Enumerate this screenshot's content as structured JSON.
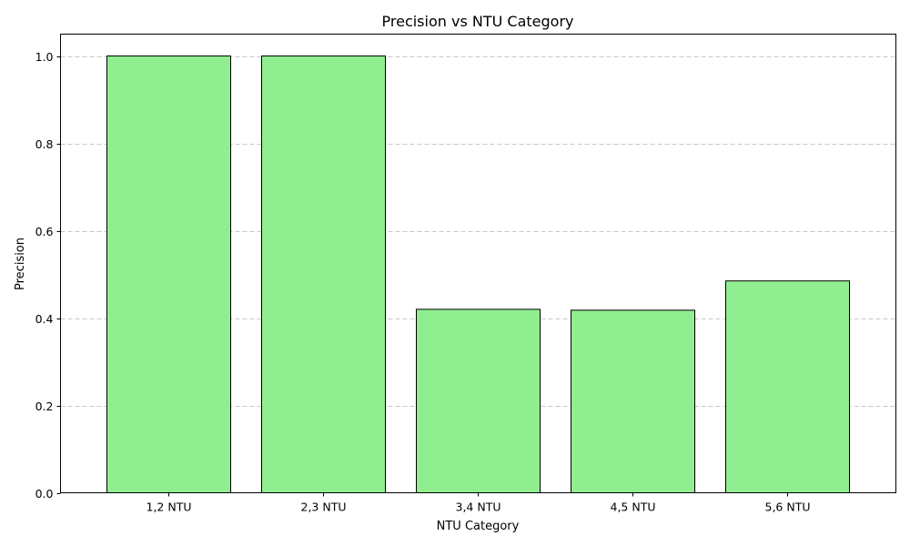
{
  "chart_data": {
    "type": "bar",
    "title": "Precision vs NTU Category",
    "xlabel": "NTU Category",
    "ylabel": "Precision",
    "categories": [
      "1,2 NTU",
      "2,3 NTU",
      "3,4 NTU",
      "4,5 NTU",
      "5,6 NTU"
    ],
    "values": [
      1.0,
      1.0,
      0.42,
      0.418,
      0.485
    ],
    "ylim": [
      0,
      1.05
    ],
    "yticks": [
      0.0,
      0.2,
      0.4,
      0.6,
      0.8,
      1.0
    ],
    "ytick_labels": [
      "0.0",
      "0.2",
      "0.4",
      "0.6",
      "0.8",
      "1.0"
    ],
    "grid": "y-dashed",
    "bar_color": "#90ee90",
    "edge_color": "#000000",
    "grid_color": "#c8c8c8"
  }
}
